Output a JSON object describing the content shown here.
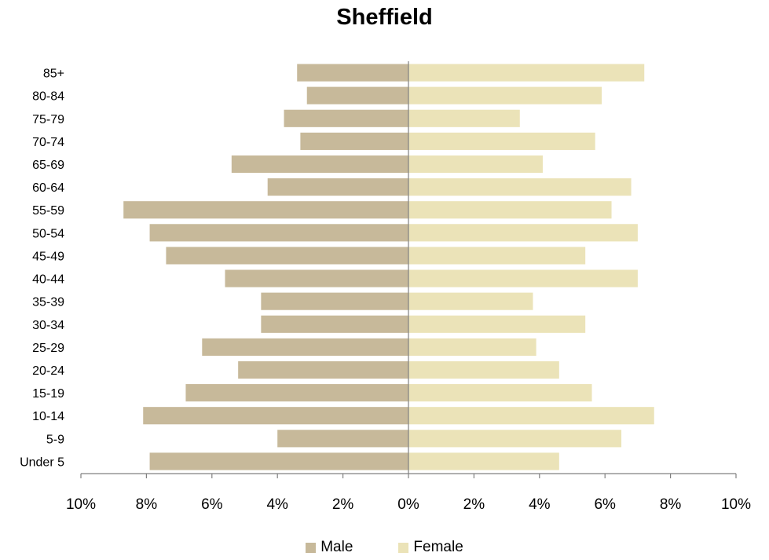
{
  "chart_data": {
    "type": "bar",
    "orientation": "horizontal",
    "title": "Sheffield",
    "categories": [
      "85+",
      "80-84",
      "75-79",
      "70-74",
      "65-69",
      "60-64",
      "55-59",
      "50-54",
      "45-49",
      "40-44",
      "35-39",
      "30-34",
      "25-29",
      "20-24",
      "15-19",
      "10-14",
      "5-9",
      "Under 5"
    ],
    "series": [
      {
        "name": "Male",
        "color": "#c7b99a",
        "values": [
          3.4,
          3.1,
          3.8,
          3.3,
          5.4,
          4.3,
          8.7,
          7.9,
          7.4,
          5.6,
          4.5,
          4.5,
          6.3,
          5.2,
          6.8,
          8.1,
          4.0,
          7.9
        ]
      },
      {
        "name": "Female",
        "color": "#ebe3b8",
        "values": [
          7.2,
          5.9,
          3.4,
          5.7,
          4.1,
          6.8,
          6.2,
          7.0,
          5.4,
          7.0,
          3.8,
          5.4,
          3.9,
          4.6,
          5.6,
          7.5,
          6.5,
          4.6
        ]
      }
    ],
    "xlim": [
      -10,
      10
    ],
    "xticks": [
      "10%",
      "8%",
      "6%",
      "4%",
      "2%",
      "0%",
      "2%",
      "4%",
      "6%",
      "8%",
      "10%"
    ],
    "xlabel": "",
    "ylabel": "",
    "legend": "bottom",
    "grid": false
  }
}
